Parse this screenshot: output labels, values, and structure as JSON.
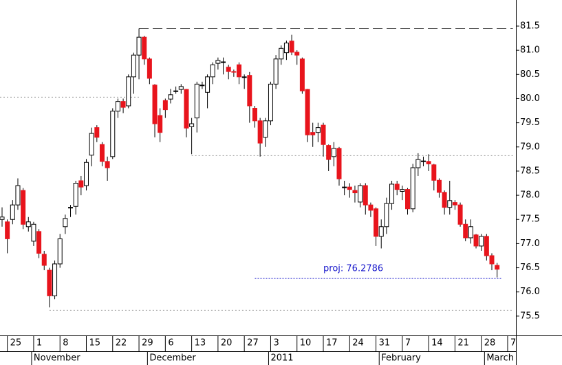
{
  "chart_data": {
    "type": "candlestick",
    "categories": [
      null,
      "25",
      null,
      null,
      null,
      null,
      "1",
      null,
      null,
      null,
      null,
      "8",
      null,
      null,
      null,
      null,
      "15",
      null,
      null,
      null,
      null,
      "22",
      null,
      null,
      null,
      null,
      "29",
      null,
      null,
      null,
      null,
      "6",
      null,
      null,
      null,
      null,
      "13",
      null,
      null,
      null,
      null,
      "20",
      null,
      null,
      null,
      null,
      "27",
      null,
      null,
      null,
      null,
      "3",
      null,
      null,
      null,
      null,
      "10",
      null,
      null,
      null,
      null,
      "17",
      null,
      null,
      null,
      null,
      "24",
      null,
      null,
      null,
      null,
      "31",
      null,
      null,
      null,
      null,
      "7",
      null,
      null,
      null,
      null,
      "14",
      null,
      null,
      null,
      null,
      "21",
      null,
      null,
      null,
      null,
      "28",
      null,
      null,
      null,
      null,
      "7"
    ],
    "months": [
      "November",
      "December",
      "2011",
      "February",
      "March"
    ],
    "open": [
      77.5,
      77.45,
      77.5,
      77.8,
      78.1,
      77.35,
      77.05,
      77.25,
      76.78,
      76.45,
      75.92,
      76.58,
      77.35,
      77.75,
      77.77,
      78.3,
      78.2,
      78.83,
      79.4,
      79.05,
      78.7,
      78.8,
      79.74,
      79.94,
      79.85,
      80.45,
      80.9,
      81.27,
      80.82,
      80.28,
      79.65,
      79.96,
      79.99,
      80.15,
      80.19,
      80.19,
      79.42,
      79.6,
      80.27,
      80.13,
      80.45,
      80.73,
      80.76,
      80.65,
      80.56,
      80.7,
      80.45,
      80.48,
      79.8,
      79.54,
      79.2,
      79.54,
      80.3,
      80.82,
      80.95,
      81.19,
      80.96,
      80.82,
      80.19,
      79.3,
      79.3,
      79.45,
      79.03,
      78.8,
      78.97,
      78.17,
      78.17,
      78.1,
      77.86,
      78.2,
      77.8,
      77.72,
      77.15,
      77.35,
      77.83,
      78.23,
      78.08,
      78.12,
      77.72,
      78.57,
      78.71,
      78.7,
      78.63,
      78.31,
      78.06,
      77.75,
      77.85,
      77.8,
      77.4,
      77.12,
      77.18,
      76.95,
      77.15,
      76.75,
      76.55,
      null,
      null
    ],
    "high": [
      77.75,
      77.5,
      77.9,
      78.35,
      78.15,
      77.55,
      77.45,
      77.3,
      76.85,
      76.5,
      76.65,
      77.2,
      77.6,
      77.8,
      78.3,
      78.4,
      78.75,
      79.4,
      79.45,
      79.1,
      78.8,
      79.8,
      80.0,
      80.0,
      80.5,
      80.95,
      81.45,
      81.3,
      80.85,
      80.3,
      79.8,
      80.0,
      80.2,
      80.25,
      80.3,
      80.2,
      79.6,
      80.35,
      80.35,
      80.5,
      80.75,
      80.85,
      80.85,
      80.7,
      80.6,
      80.75,
      80.5,
      80.55,
      79.85,
      79.6,
      79.6,
      80.35,
      80.9,
      81.1,
      81.2,
      81.32,
      81.0,
      80.85,
      80.2,
      79.5,
      79.5,
      79.5,
      79.05,
      79.1,
      79.0,
      78.3,
      78.25,
      78.2,
      78.25,
      78.25,
      77.85,
      77.75,
      77.5,
      77.95,
      78.3,
      78.3,
      78.2,
      78.15,
      78.65,
      78.87,
      78.8,
      78.85,
      78.65,
      78.35,
      78.1,
      78.3,
      77.9,
      77.85,
      77.5,
      77.5,
      77.2,
      77.2,
      77.2,
      76.8,
      76.6,
      null,
      null
    ],
    "low": [
      77.35,
      76.8,
      77.4,
      77.7,
      77.3,
      77.25,
      76.95,
      76.7,
      76.45,
      75.68,
      75.85,
      76.5,
      77.2,
      77.55,
      77.6,
      78.0,
      78.1,
      78.6,
      79.1,
      78.6,
      78.3,
      78.75,
      79.6,
      79.7,
      79.8,
      80.1,
      80.4,
      80.7,
      80.3,
      79.2,
      79.1,
      79.6,
      79.9,
      80.1,
      80.1,
      79.2,
      78.85,
      79.3,
      80.2,
      79.8,
      80.3,
      80.6,
      80.5,
      80.4,
      80.45,
      80.3,
      80.2,
      79.5,
      79.4,
      78.8,
      79.0,
      79.45,
      80.2,
      80.7,
      80.8,
      80.9,
      80.7,
      80.1,
      79.1,
      79.0,
      79.1,
      78.8,
      78.5,
      78.6,
      78.2,
      78.0,
      77.95,
      77.85,
      77.75,
      77.6,
      77.55,
      76.95,
      76.9,
      77.2,
      77.7,
      78.0,
      77.9,
      77.6,
      77.65,
      78.4,
      78.6,
      78.5,
      78.1,
      77.95,
      77.6,
      77.6,
      77.7,
      77.35,
      77.05,
      77.0,
      76.9,
      76.85,
      76.65,
      76.45,
      76.3,
      null,
      null
    ],
    "close": [
      77.55,
      77.1,
      77.8,
      78.2,
      77.4,
      77.45,
      77.4,
      76.8,
      76.55,
      75.92,
      76.58,
      77.1,
      77.52,
      77.75,
      78.25,
      78.17,
      78.68,
      79.28,
      79.2,
      78.7,
      78.57,
      79.74,
      79.94,
      79.82,
      80.45,
      80.9,
      81.27,
      80.82,
      80.42,
      79.48,
      79.3,
      79.77,
      80.08,
      80.16,
      80.25,
      79.39,
      79.48,
      80.3,
      80.28,
      80.45,
      80.7,
      80.79,
      80.76,
      80.56,
      80.55,
      80.45,
      80.45,
      79.85,
      79.54,
      79.08,
      79.54,
      80.3,
      80.82,
      81.04,
      81.15,
      80.96,
      80.9,
      80.16,
      79.25,
      79.25,
      79.4,
      79.05,
      78.74,
      78.97,
      78.34,
      78.17,
      78.12,
      78.05,
      78.2,
      77.8,
      77.69,
      77.15,
      77.35,
      77.83,
      78.23,
      78.12,
      78.12,
      77.72,
      78.57,
      78.74,
      78.71,
      78.65,
      78.31,
      78.06,
      77.75,
      77.89,
      77.8,
      77.4,
      77.12,
      77.35,
      76.95,
      77.15,
      76.75,
      76.58,
      76.47,
      null,
      null
    ],
    "up_color": "#ffffff",
    "down_color": "#e8141c",
    "levels": [
      {
        "value": 81.45
      },
      {
        "value": 80.03
      },
      {
        "value": 78.82
      },
      {
        "value": 75.62
      }
    ],
    "projection": {
      "label": "proj: 76.2786",
      "value": 76.2786,
      "color": "#1a1acc"
    },
    "ylim": [
      75.1,
      82.04
    ],
    "yticks": [
      {
        "value": 75.5,
        "label": "75.5"
      },
      {
        "value": 76,
        "label": "76.0"
      },
      {
        "value": 76.5,
        "label": "76.5"
      },
      {
        "value": 77,
        "label": "77.0"
      },
      {
        "value": 77.5,
        "label": "77.5"
      },
      {
        "value": 78,
        "label": "78.0"
      },
      {
        "value": 78.5,
        "label": "78.5"
      },
      {
        "value": 79,
        "label": "79.0"
      },
      {
        "value": 79.5,
        "label": "79.5"
      },
      {
        "value": 80,
        "label": "80.0"
      },
      {
        "value": 80.5,
        "label": "80.5"
      },
      {
        "value": 81,
        "label": "81.0"
      },
      {
        "value": 81.5,
        "label": "81.5"
      }
    ]
  }
}
